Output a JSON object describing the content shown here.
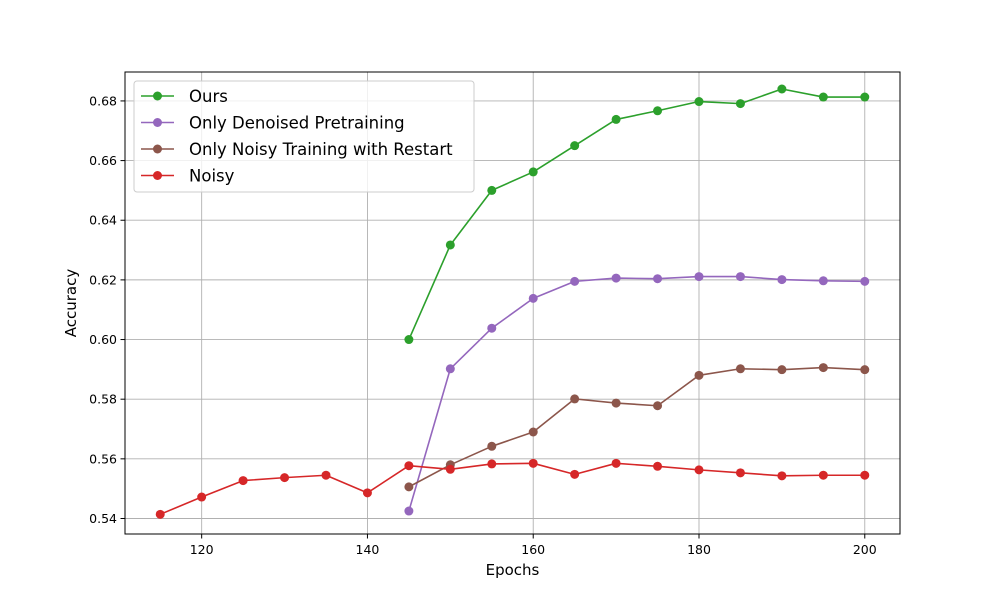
{
  "chart_data": {
    "type": "line",
    "title": "",
    "xlabel": "Epochs",
    "ylabel": "Accuracy",
    "xlim": [
      110.75,
      204.25
    ],
    "ylim": [
      0.5348,
      0.6897
    ],
    "xticks": [
      120,
      140,
      160,
      180,
      200
    ],
    "yticks": [
      0.54,
      0.56,
      0.58,
      0.6,
      0.62,
      0.64,
      0.66,
      0.68
    ],
    "xtick_labels": [
      "120",
      "140",
      "160",
      "180",
      "200"
    ],
    "ytick_labels": [
      "0.54",
      "0.56",
      "0.58",
      "0.60",
      "0.62",
      "0.64",
      "0.66",
      "0.68"
    ],
    "grid": true,
    "legend_position": "top-left",
    "series": [
      {
        "name": "Ours",
        "color": "#2ca02c",
        "x": [
          145,
          150,
          155,
          160,
          165,
          170,
          175,
          180,
          185,
          190,
          195,
          200
        ],
        "y": [
          0.6,
          0.6317,
          0.65,
          0.6562,
          0.665,
          0.6738,
          0.6767,
          0.6798,
          0.6791,
          0.684,
          0.6813,
          0.6813
        ]
      },
      {
        "name": "Only Denoised Pretraining",
        "color": "#9467bd",
        "x": [
          145,
          150,
          155,
          160,
          165,
          170,
          175,
          180,
          185,
          190,
          195,
          200
        ],
        "y": [
          0.5425,
          0.5902,
          0.6038,
          0.6138,
          0.6195,
          0.6206,
          0.6204,
          0.6211,
          0.6211,
          0.6201,
          0.6197,
          0.6195
        ]
      },
      {
        "name": "Only Noisy Training with Restart",
        "color": "#8c564b",
        "x": [
          145,
          150,
          155,
          160,
          165,
          170,
          175,
          180,
          185,
          190,
          195,
          200
        ],
        "y": [
          0.5506,
          0.558,
          0.5642,
          0.569,
          0.5801,
          0.5787,
          0.5778,
          0.588,
          0.5902,
          0.5899,
          0.5906,
          0.5899
        ]
      },
      {
        "name": "Noisy",
        "color": "#d62728",
        "x": [
          115,
          120,
          125,
          130,
          135,
          140,
          145,
          150,
          155,
          160,
          165,
          170,
          175,
          180,
          185,
          190,
          195,
          200
        ],
        "y": [
          0.5414,
          0.5472,
          0.5527,
          0.5537,
          0.5545,
          0.5486,
          0.5577,
          0.5565,
          0.5583,
          0.5585,
          0.5548,
          0.5585,
          0.5575,
          0.5563,
          0.5553,
          0.5543,
          0.5545,
          0.5545
        ]
      }
    ]
  }
}
